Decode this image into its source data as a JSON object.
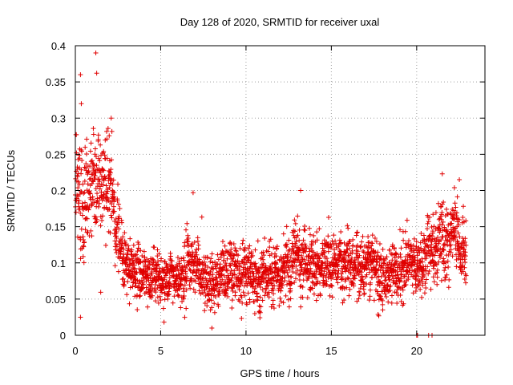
{
  "chart_data": {
    "type": "scatter",
    "title": "Day 128 of 2020, SRMTID for receiver uxal",
    "xlabel": "GPS time / hours",
    "ylabel": "SRMTID / TECUs",
    "xlim": [
      0,
      24
    ],
    "ylim": [
      0,
      0.4
    ],
    "grid": true,
    "marker": "+",
    "color": "#e00000",
    "xticks": [
      0,
      5,
      10,
      15,
      20
    ],
    "xtick_labels": [
      "0",
      "5",
      "10",
      "15",
      "20"
    ],
    "yticks": [
      0,
      0.05,
      0.1,
      0.15,
      0.2,
      0.25,
      0.3,
      0.35,
      0.4
    ],
    "ytick_labels": [
      "0",
      "0.05",
      "0.1",
      "0.15",
      "0.2",
      "0.25",
      "0.3",
      "0.35",
      "0.4"
    ],
    "trend_profile": {
      "hours": [
        0,
        0.5,
        1.0,
        1.5,
        2.0,
        2.5,
        3.0,
        4.0,
        5.0,
        6.0,
        6.5,
        7.0,
        8.0,
        9.0,
        10.0,
        11.0,
        12.0,
        13.0,
        14.0,
        15.0,
        16.0,
        17.0,
        18.0,
        19.0,
        20.0,
        21.0,
        22.0,
        23.0
      ],
      "mean_srmtid": [
        0.2,
        0.19,
        0.21,
        0.22,
        0.2,
        0.15,
        0.09,
        0.085,
        0.08,
        0.075,
        0.09,
        0.1,
        0.07,
        0.095,
        0.09,
        0.08,
        0.085,
        0.11,
        0.095,
        0.1,
        0.1,
        0.1,
        0.085,
        0.09,
        0.095,
        0.12,
        0.14,
        0.11
      ],
      "spread": [
        0.06,
        0.07,
        0.06,
        0.05,
        0.05,
        0.04,
        0.025,
        0.025,
        0.025,
        0.02,
        0.035,
        0.03,
        0.03,
        0.03,
        0.03,
        0.03,
        0.03,
        0.035,
        0.03,
        0.03,
        0.03,
        0.03,
        0.03,
        0.03,
        0.03,
        0.035,
        0.04,
        0.03
      ],
      "sample_interval_hours": 0.0083,
      "end_hour": 22.9
    },
    "notable_points": [
      {
        "x": 1.2,
        "y": 0.39
      },
      {
        "x": 0.3,
        "y": 0.36
      },
      {
        "x": 1.25,
        "y": 0.362
      },
      {
        "x": 0.35,
        "y": 0.32
      },
      {
        "x": 2.1,
        "y": 0.3
      },
      {
        "x": 0.3,
        "y": 0.025
      },
      {
        "x": 8.0,
        "y": 0.01
      },
      {
        "x": 6.9,
        "y": 0.197
      },
      {
        "x": 13.2,
        "y": 0.2
      },
      {
        "x": 21.5,
        "y": 0.223
      },
      {
        "x": 22.5,
        "y": 0.215
      },
      {
        "x": 20.0,
        "y": 0.0
      },
      {
        "x": 20.05,
        "y": 0.0
      },
      {
        "x": 20.7,
        "y": 0.0
      },
      {
        "x": 20.9,
        "y": 0.0
      }
    ]
  }
}
